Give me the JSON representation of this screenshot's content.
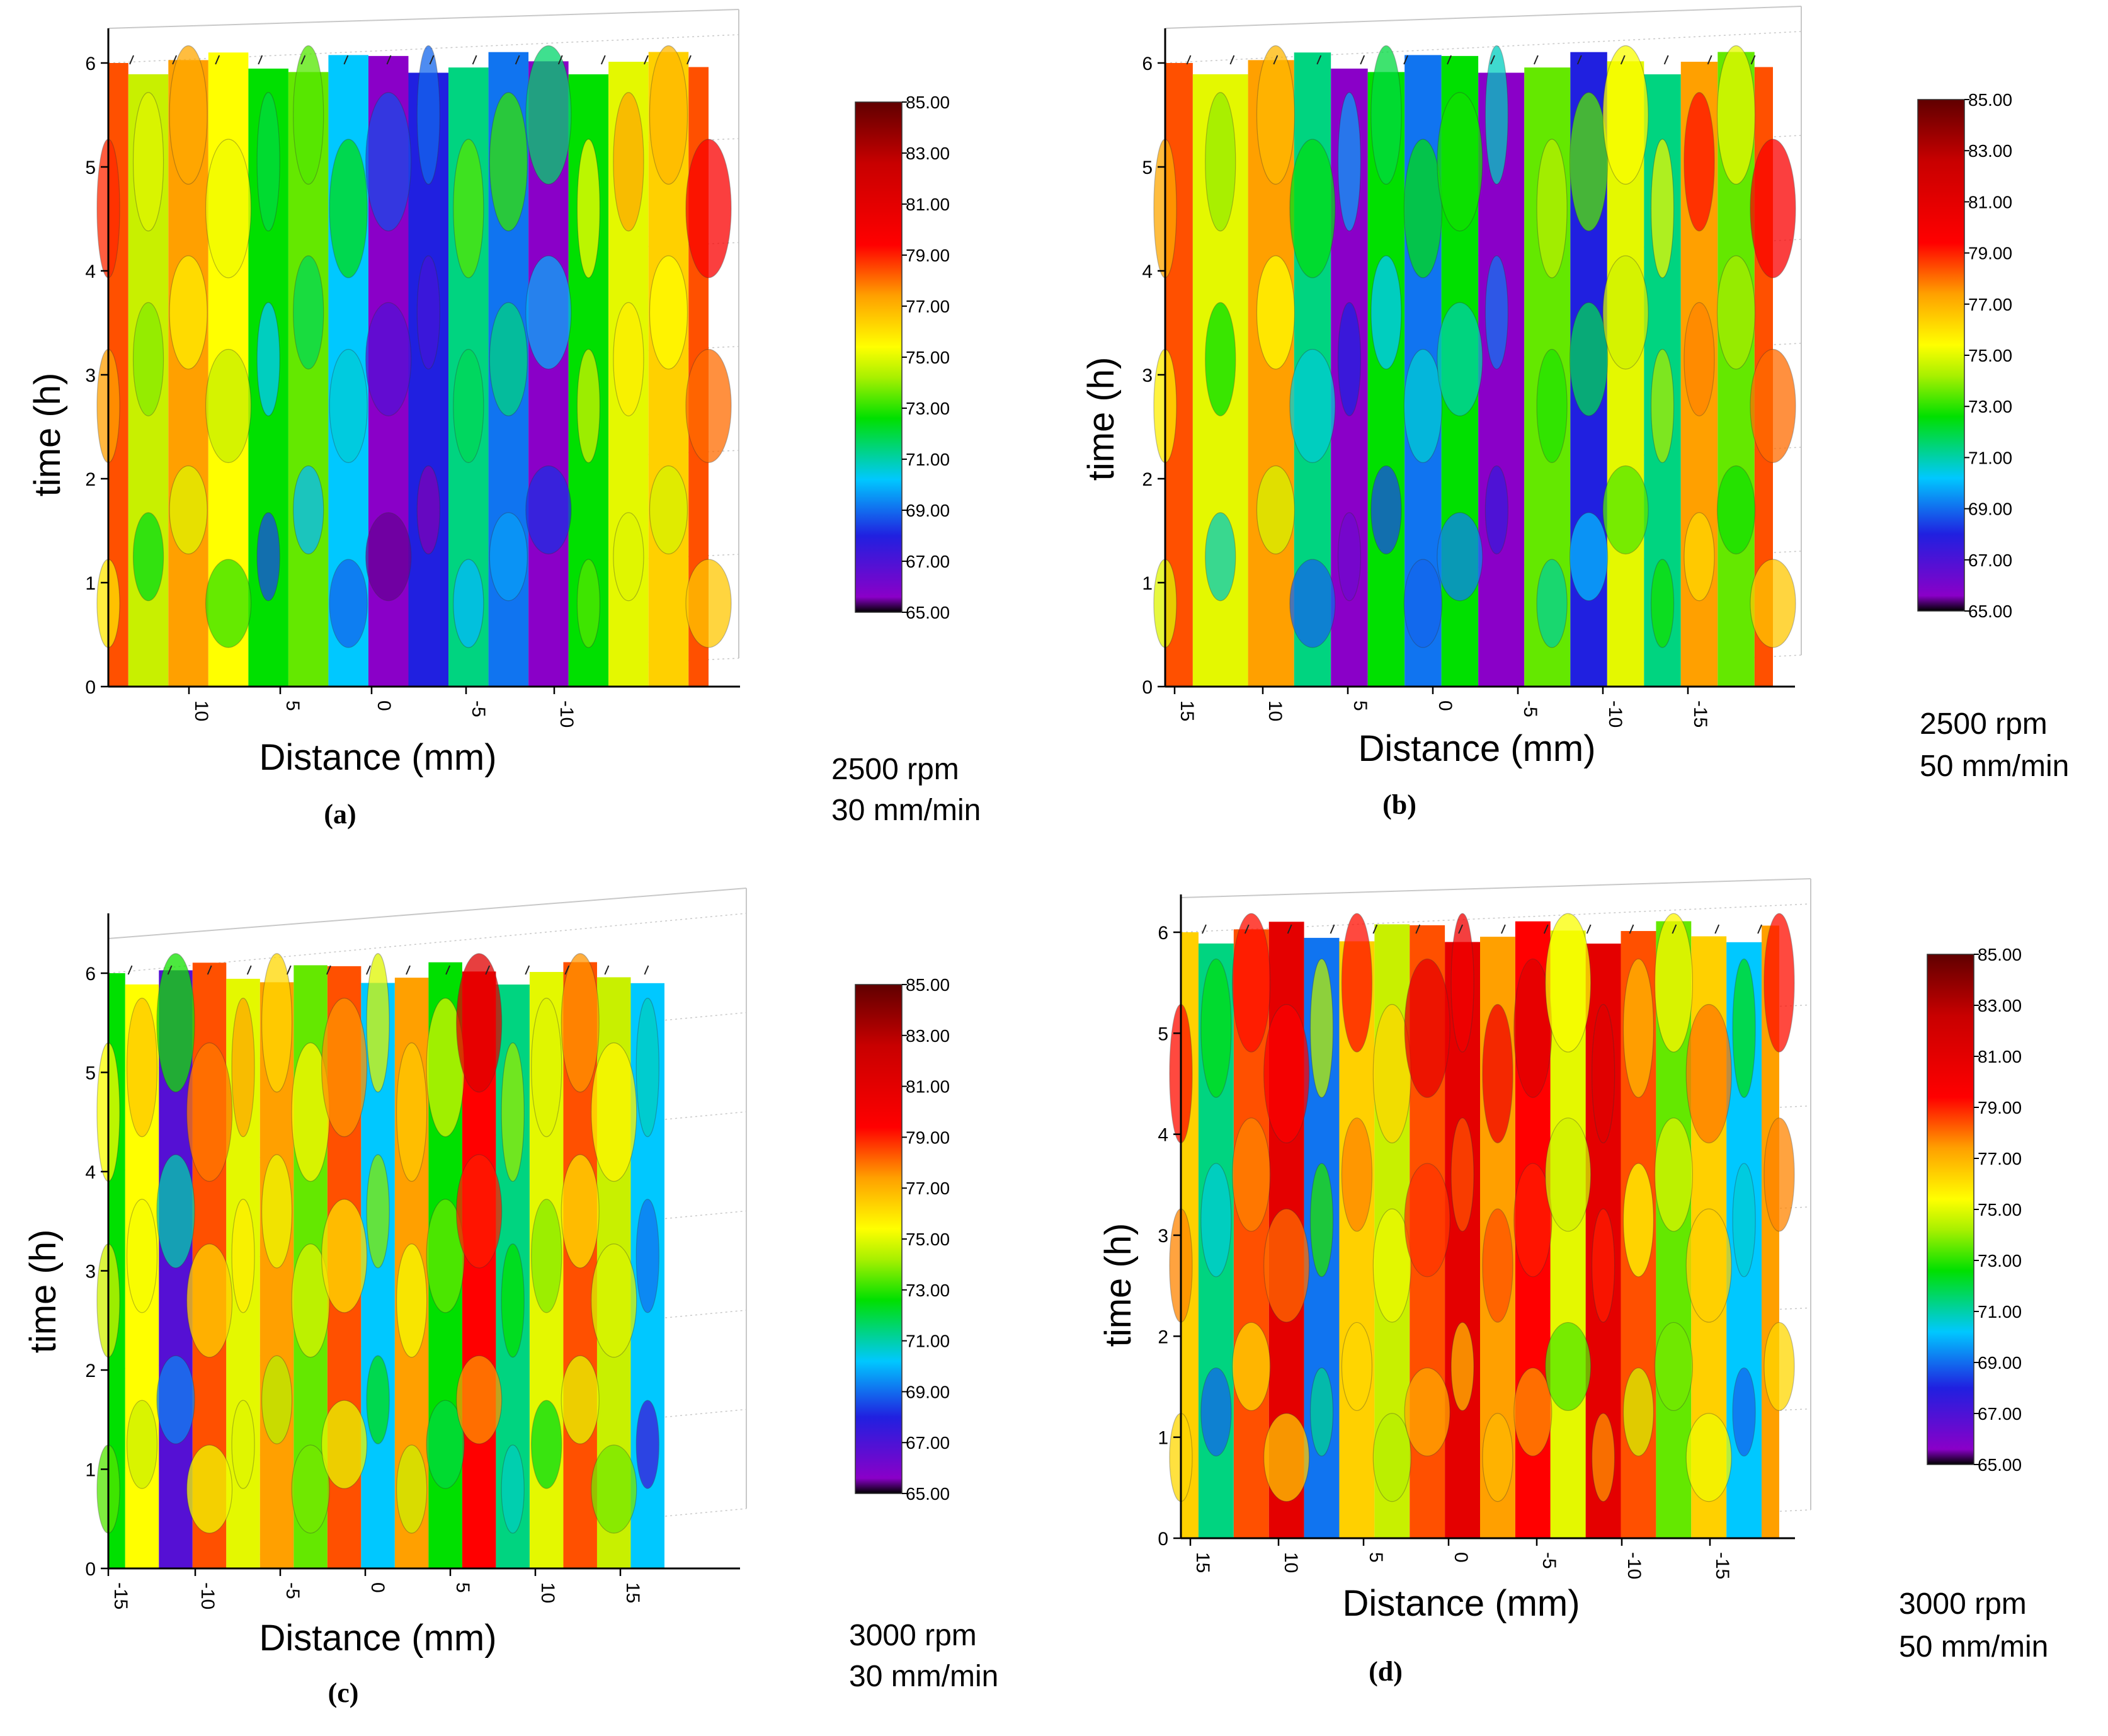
{
  "chart_data": [
    {
      "type": "heatmap",
      "panel_label": "(a)",
      "xlabel": "Distance (mm)",
      "ylabel": "time (h)",
      "x_ticks": [
        "10",
        "5",
        "0",
        "-5",
        "-10"
      ],
      "y_ticks": [
        "0",
        "1",
        "2",
        "3",
        "4",
        "5",
        "6"
      ],
      "condition": [
        "2500 rpm",
        "30 mm/min"
      ],
      "colorbar_ticks": [
        "85.00",
        "83.00",
        "81.00",
        "79.00",
        "77.00",
        "75.00",
        "73.00",
        "71.00",
        "69.00",
        "67.00",
        "65.00"
      ],
      "zlim": [
        65,
        85
      ],
      "ylim": [
        0,
        6
      ],
      "columns": [
        {
          "x": 14,
          "value": 80
        },
        {
          "x": 12,
          "value": 75
        },
        {
          "x": 10,
          "value": 79
        },
        {
          "x": 8,
          "value": 77
        },
        {
          "x": 6,
          "value": 73
        },
        {
          "x": 4,
          "value": 74
        },
        {
          "x": 2,
          "value": 71
        },
        {
          "x": 0,
          "value": 67
        },
        {
          "x": -2,
          "value": 69
        },
        {
          "x": -4,
          "value": 72
        },
        {
          "x": -6,
          "value": 70
        },
        {
          "x": -8,
          "value": 67
        },
        {
          "x": -10,
          "value": 73
        },
        {
          "x": -12,
          "value": 76
        },
        {
          "x": -14,
          "value": 78
        },
        {
          "x": -16,
          "value": 80
        }
      ]
    },
    {
      "type": "heatmap",
      "panel_label": "(b)",
      "xlabel": "Distance (mm)",
      "ylabel": "time (h)",
      "x_ticks": [
        "15",
        "10",
        "5",
        "0",
        "-5",
        "-10",
        "-15"
      ],
      "y_ticks": [
        "0",
        "1",
        "2",
        "3",
        "4",
        "5",
        "6"
      ],
      "condition": [
        "2500 rpm",
        "50 mm/min"
      ],
      "colorbar_ticks": [
        "85.00",
        "83.00",
        "81.00",
        "79.00",
        "77.00",
        "75.00",
        "73.00",
        "71.00",
        "69.00",
        "67.00",
        "65.00"
      ],
      "zlim": [
        65,
        85
      ],
      "ylim": [
        0,
        6
      ],
      "columns": [
        {
          "x": 16,
          "value": 80
        },
        {
          "x": 13,
          "value": 76
        },
        {
          "x": 10,
          "value": 79
        },
        {
          "x": 8,
          "value": 72
        },
        {
          "x": 6,
          "value": 67
        },
        {
          "x": 4,
          "value": 73
        },
        {
          "x": 2,
          "value": 70
        },
        {
          "x": 0,
          "value": 73
        },
        {
          "x": -2,
          "value": 67
        },
        {
          "x": -5,
          "value": 74
        },
        {
          "x": -7,
          "value": 69
        },
        {
          "x": -9,
          "value": 76
        },
        {
          "x": -11,
          "value": 72
        },
        {
          "x": -13,
          "value": 79
        },
        {
          "x": -15,
          "value": 74
        },
        {
          "x": -17,
          "value": 80
        }
      ]
    },
    {
      "type": "heatmap",
      "panel_label": "(c)",
      "xlabel": "Distance (mm)",
      "ylabel": "time (h)",
      "x_ticks": [
        "-15",
        "-10",
        "-5",
        "0",
        "5",
        "10",
        "15"
      ],
      "y_ticks": [
        "0",
        "1",
        "2",
        "3",
        "4",
        "5",
        "6"
      ],
      "condition": [
        "3000 rpm",
        "30 mm/min"
      ],
      "colorbar_ticks": [
        "85.00",
        "83.00",
        "81.00",
        "79.00",
        "77.00",
        "75.00",
        "73.00",
        "71.00",
        "69.00",
        "67.00",
        "65.00"
      ],
      "zlim": [
        65,
        85
      ],
      "ylim": [
        0,
        6
      ],
      "columns": [
        {
          "x": -15,
          "value": 73
        },
        {
          "x": -13,
          "value": 77
        },
        {
          "x": -11,
          "value": 68
        },
        {
          "x": -9,
          "value": 80
        },
        {
          "x": -7,
          "value": 76
        },
        {
          "x": -5,
          "value": 79
        },
        {
          "x": -3,
          "value": 74
        },
        {
          "x": -1,
          "value": 80
        },
        {
          "x": 1,
          "value": 71
        },
        {
          "x": 3,
          "value": 79
        },
        {
          "x": 5,
          "value": 73
        },
        {
          "x": 7,
          "value": 81
        },
        {
          "x": 9,
          "value": 72
        },
        {
          "x": 11,
          "value": 76
        },
        {
          "x": 13,
          "value": 80
        },
        {
          "x": 15,
          "value": 75
        },
        {
          "x": 17,
          "value": 71
        }
      ]
    },
    {
      "type": "heatmap",
      "panel_label": "(d)",
      "xlabel": "Distance (mm)",
      "ylabel": "time (h)",
      "x_ticks": [
        "15",
        "10",
        "5",
        "0",
        "-5",
        "-10",
        "-15"
      ],
      "y_ticks": [
        "0",
        "1",
        "2",
        "3",
        "4",
        "5",
        "6"
      ],
      "condition": [
        "3000 rpm",
        "50 mm/min"
      ],
      "colorbar_ticks": [
        "85.00",
        "83.00",
        "81.00",
        "79.00",
        "77.00",
        "75.00",
        "73.00",
        "71.00",
        "69.00",
        "67.00",
        "65.00"
      ],
      "zlim": [
        65,
        85
      ],
      "ylim": [
        0,
        6
      ],
      "columns": [
        {
          "x": 16,
          "value": 78
        },
        {
          "x": 14,
          "value": 72
        },
        {
          "x": 12,
          "value": 80
        },
        {
          "x": 10,
          "value": 82
        },
        {
          "x": 8,
          "value": 70
        },
        {
          "x": 6,
          "value": 78
        },
        {
          "x": 4,
          "value": 75
        },
        {
          "x": 2,
          "value": 80
        },
        {
          "x": 0,
          "value": 82
        },
        {
          "x": -2,
          "value": 79
        },
        {
          "x": -4,
          "value": 81
        },
        {
          "x": -6,
          "value": 76
        },
        {
          "x": -8,
          "value": 82
        },
        {
          "x": -10,
          "value": 80
        },
        {
          "x": -12,
          "value": 74
        },
        {
          "x": -14,
          "value": 78
        },
        {
          "x": -16,
          "value": 71
        },
        {
          "x": -18,
          "value": 79
        }
      ]
    }
  ],
  "colors": {
    "colormap": [
      "#000000",
      "#8a00c8",
      "#2020e0",
      "#00c8ff",
      "#00e000",
      "#c8f000",
      "#ffff00",
      "#ffa000",
      "#ff0000",
      "#c80000",
      "#600000"
    ],
    "grid": "#c8c8c8",
    "contour": "#333333",
    "axis": "#000000"
  }
}
